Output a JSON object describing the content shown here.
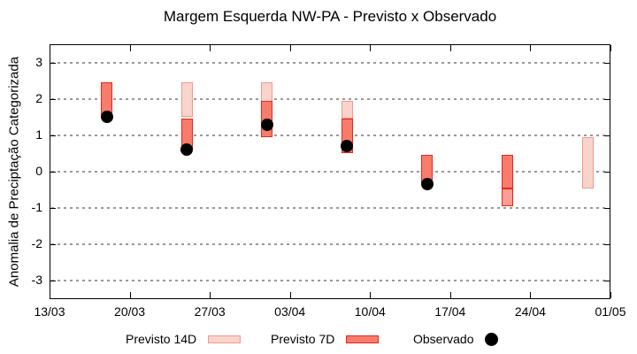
{
  "title": "Margem Esquerda NW-PA - Previsto x Observado",
  "ylabel": "Anomalia de Preciptação Categorizada",
  "legend": {
    "p14": "Previsto 14D",
    "p7": "Previsto 7D",
    "obs": "Observado"
  },
  "colors": {
    "p14_fill": "#f9d4cc",
    "p14_border": "#f0998c",
    "p7_fill": "#f87c6c",
    "p7_border": "#e8251a",
    "p7_light_fill": "#fb9e95",
    "observed": "#000000",
    "grid": "#999999",
    "axis": "#000000"
  },
  "chart_data": {
    "type": "bar",
    "title": "Margem Esquerda NW-PA - Previsto x Observado",
    "xlabel": "",
    "ylabel": "Anomalia de Preciptação Categorizada",
    "ylim": [
      -3.5,
      3.5
    ],
    "yticks": [
      3,
      2,
      1,
      0,
      -1,
      -2,
      -3
    ],
    "grid": "horizontal-dotted",
    "legend_position": "bottom",
    "x_total_days": 49,
    "xticks": [
      {
        "label": "13/03",
        "day": 0
      },
      {
        "label": "20/03",
        "day": 7
      },
      {
        "label": "27/03",
        "day": 14
      },
      {
        "label": "03/04",
        "day": 21
      },
      {
        "label": "10/04",
        "day": 28
      },
      {
        "label": "17/04",
        "day": 35
      },
      {
        "label": "24/04",
        "day": 42
      },
      {
        "label": "01/05",
        "day": 49
      }
    ],
    "clusters": [
      {
        "date": "18/03",
        "day": 5,
        "p14": null,
        "p7": [
          1.45,
          2.45
        ],
        "p7_light": null,
        "obs": 1.5
      },
      {
        "date": "25/03",
        "day": 12,
        "p14": [
          1.5,
          2.45
        ],
        "p7": [
          0.6,
          1.45
        ],
        "p7_light": null,
        "obs": 0.6
      },
      {
        "date": "01/04",
        "day": 19,
        "p14": [
          0.95,
          2.45
        ],
        "p7": [
          0.95,
          1.95
        ],
        "p7_light": null,
        "obs": 1.3
      },
      {
        "date": "08/04",
        "day": 26,
        "p14": [
          1.45,
          1.95
        ],
        "p7": [
          0.5,
          1.45
        ],
        "p7_light": null,
        "obs": 0.7
      },
      {
        "date": "15/04",
        "day": 33,
        "p14": null,
        "p7": [
          -0.3,
          0.45
        ],
        "p7_light": null,
        "obs": -0.35
      },
      {
        "date": "22/04",
        "day": 40,
        "p14": null,
        "p7": [
          -0.45,
          0.45
        ],
        "p7_light": [
          -0.95,
          -0.45
        ],
        "obs": null
      },
      {
        "date": "29/04",
        "day": 47,
        "p14": [
          -0.45,
          0.95
        ],
        "p7": null,
        "p7_light": null,
        "obs": null
      }
    ]
  }
}
